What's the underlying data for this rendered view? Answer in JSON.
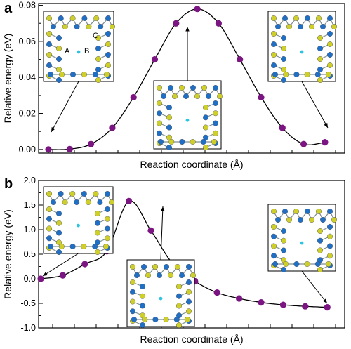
{
  "figure": {
    "panel_a_letter": "a",
    "panel_b_letter": "b"
  },
  "chart_data": [
    {
      "panel": "a",
      "type": "line",
      "xlabel": "Reaction coordinate (Å)",
      "ylabel": "Relative energy (eV)",
      "x": [
        0,
        1,
        2,
        3,
        4,
        5,
        6,
        7,
        8,
        9,
        10,
        11,
        12,
        13
      ],
      "values": [
        0.0,
        0.0002,
        0.003,
        0.012,
        0.029,
        0.05,
        0.07,
        0.078,
        0.07,
        0.05,
        0.029,
        0.012,
        0.003,
        0.004
      ],
      "ylim": [
        -0.002,
        0.081
      ],
      "yticks": [
        "0.00",
        "0.02",
        "0.04",
        "0.06",
        "0.08"
      ],
      "marker_color": "#7b1582",
      "insets": [
        {
          "position": "left",
          "atom_labels": [
            "A",
            "B",
            "C"
          ]
        },
        {
          "position": "center",
          "atom_labels": []
        },
        {
          "position": "right",
          "atom_labels": []
        }
      ]
    },
    {
      "panel": "b",
      "type": "line",
      "xlabel": "Reaction coordinate (Å)",
      "ylabel": "Relative energy (eV)",
      "x": [
        0,
        1,
        2,
        3,
        4,
        5,
        6,
        7,
        8,
        9,
        10,
        11,
        12,
        13
      ],
      "values": [
        0.0,
        0.07,
        0.3,
        0.56,
        1.58,
        0.98,
        0.3,
        -0.05,
        -0.28,
        -0.4,
        -0.48,
        -0.53,
        -0.56,
        -0.58
      ],
      "ylim": [
        -1.0,
        2.0
      ],
      "yticks": [
        "-1.0",
        "-0.5",
        "0.0",
        "0.5",
        "1.0",
        "1.5",
        "2.0"
      ],
      "marker_color": "#7b1582",
      "insets": [
        {
          "position": "left",
          "atom_labels": []
        },
        {
          "position": "center",
          "atom_labels": []
        },
        {
          "position": "right",
          "atom_labels": []
        }
      ]
    }
  ]
}
